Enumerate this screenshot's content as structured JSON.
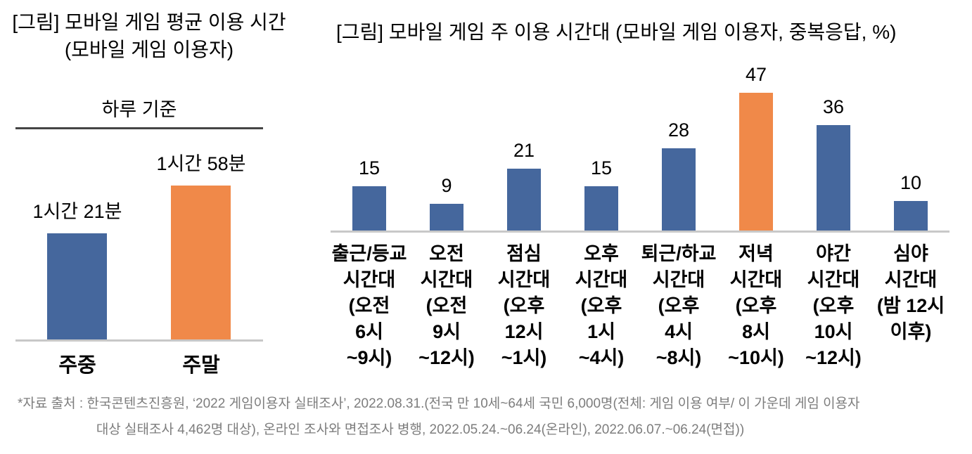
{
  "page": {
    "background": "#ffffff"
  },
  "colors": {
    "bar_blue": "#45679d",
    "bar_orange": "#f08949",
    "subtitle_rule": "#454545",
    "baseline": "#c8c8c8",
    "footnote_text": "#7d7d7d",
    "text": "#000000"
  },
  "left_chart": {
    "title_lines": [
      "[그림] 모바일 게임 평균 이용 시간",
      "(모바일 게임 이용자)"
    ],
    "subtitle": "하루 기준",
    "bars": [
      {
        "category": "주중",
        "value_label": "1시간 21분",
        "minutes": 81,
        "color": "#45679d"
      },
      {
        "category": "주말",
        "value_label": "1시간 58분",
        "minutes": 118,
        "color": "#f08949"
      }
    ]
  },
  "right_chart": {
    "title": "[그림] 모바일 게임 주 이용 시간대 (모바일 게임 이용자, 중복응답, %)",
    "bars": [
      {
        "value": 15,
        "label_lines": [
          "출근/등교",
          "시간대",
          "(오전",
          "6시",
          "~9시)"
        ],
        "color": "#45679d"
      },
      {
        "value": 9,
        "label_lines": [
          "오전",
          "시간대",
          "(오전",
          "9시",
          "~12시)"
        ],
        "color": "#45679d"
      },
      {
        "value": 21,
        "label_lines": [
          "점심",
          "시간대",
          "(오후",
          "12시",
          "~1시)"
        ],
        "color": "#45679d"
      },
      {
        "value": 15,
        "label_lines": [
          "오후",
          "시간대",
          "(오후",
          "1시",
          "~4시)"
        ],
        "color": "#45679d"
      },
      {
        "value": 28,
        "label_lines": [
          "퇴근/하교",
          "시간대",
          "(오후",
          "4시",
          "~8시)"
        ],
        "color": "#45679d"
      },
      {
        "value": 47,
        "label_lines": [
          "저녁",
          "시간대",
          "(오후",
          "8시",
          "~10시)"
        ],
        "color": "#f08949"
      },
      {
        "value": 36,
        "label_lines": [
          "야간",
          "시간대",
          "(오후",
          "10시",
          "~12시)"
        ],
        "color": "#45679d"
      },
      {
        "value": 10,
        "label_lines": [
          "심야",
          "시간대",
          "(밤 12시",
          "이후)"
        ],
        "color": "#45679d"
      }
    ]
  },
  "footnote": {
    "line1": "*자료 출처 : 한국콘텐츠진흥원, ‘2022 게임이용자 실태조사’, 2022.08.31.(전국 만 10세~64세 국민 6,000명(전체: 게임 이용 여부/ 이 가운데 게임 이용자",
    "line2": "대상 실태조사 4,462명 대상), 온라인 조사와 면접조사 병행, 2022.05.24.~06.24(온라인), 2022.06.07.~06.24(면접))"
  },
  "chart_data": [
    {
      "type": "bar",
      "title": "[그림] 모바일 게임 평균 이용 시간 (모바일 게임 이용자)",
      "subtitle": "하루 기준",
      "categories": [
        "주중",
        "주말"
      ],
      "values_minutes": [
        81,
        118
      ],
      "value_labels": [
        "1시간 21분",
        "1시간 58분"
      ],
      "unit": "시간(하루 기준)",
      "bar_colors": [
        "#45679d",
        "#f08949"
      ],
      "grid": false,
      "legend": false
    },
    {
      "type": "bar",
      "title": "[그림] 모바일 게임 주 이용 시간대 (모바일 게임 이용자, 중복응답, %)",
      "categories": [
        "출근/등교 시간대 (오전 6시~9시)",
        "오전 시간대 (오전 9시~12시)",
        "점심 시간대 (오후 12시~1시)",
        "오후 시간대 (오후 1시~4시)",
        "퇴근/하교 시간대 (오후 4시~8시)",
        "저녁 시간대 (오후 8시~10시)",
        "야간 시간대 (오후 10시~12시)",
        "심야 시간대 (밤 12시 이후)"
      ],
      "values": [
        15,
        9,
        21,
        15,
        28,
        47,
        36,
        10
      ],
      "unit": "%",
      "highlight_index": 5,
      "bar_colors": [
        "#45679d",
        "#45679d",
        "#45679d",
        "#45679d",
        "#45679d",
        "#f08949",
        "#45679d",
        "#45679d"
      ],
      "ylim": [
        0,
        50
      ],
      "grid": false,
      "legend": false
    }
  ]
}
